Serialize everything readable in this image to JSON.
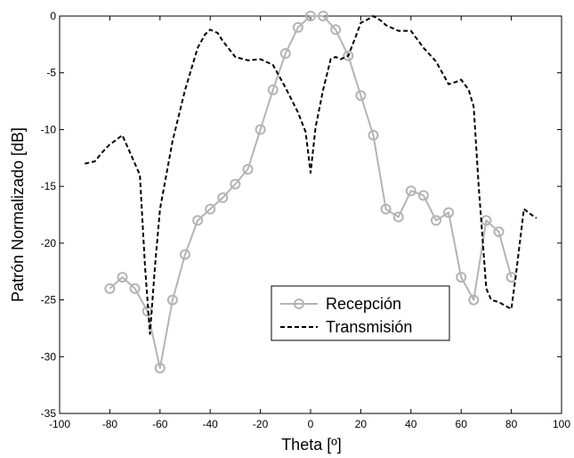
{
  "chart_data": {
    "type": "line",
    "title": "",
    "xlabel": "Theta [º]",
    "ylabel": "Patrón Normalizado [dB]",
    "xlim": [
      -100,
      100
    ],
    "ylim": [
      -35,
      0
    ],
    "xticks": [
      -100,
      -80,
      -60,
      -40,
      -20,
      0,
      20,
      40,
      60,
      80,
      100
    ],
    "yticks": [
      0,
      -5,
      -10,
      -15,
      -20,
      -25,
      -30,
      -35
    ],
    "grid": false,
    "legend_position": "lower-right inside plot",
    "series": [
      {
        "name": "Recepción",
        "color": "#b4b4b4",
        "line_style": "solid",
        "marker": "circle",
        "x": [
          -80,
          -75,
          -70,
          -65,
          -60,
          -55,
          -50,
          -45,
          -40,
          -35,
          -30,
          -25,
          -20,
          -15,
          -10,
          -5,
          0,
          5,
          10,
          15,
          20,
          25,
          30,
          35,
          40,
          45,
          50,
          55,
          60,
          65,
          70,
          75,
          80
        ],
        "y": [
          -24,
          -23,
          -24,
          -26,
          -31,
          -25,
          -21,
          -18,
          -17,
          -16,
          -14.8,
          -13.5,
          -10,
          -6.5,
          -3.3,
          -1,
          0,
          0,
          -1.2,
          -3.5,
          -7,
          -10.5,
          -17,
          -17.7,
          -15.4,
          -15.8,
          -18,
          -17.3,
          -23,
          -25,
          -18,
          -19,
          -23
        ]
      },
      {
        "name": "Transmisión",
        "color": "#000000",
        "line_style": "dashed",
        "marker": "none",
        "x": [
          -90,
          -86,
          -83,
          -80,
          -78,
          -75,
          -73,
          -71,
          -68,
          -66,
          -64,
          -62,
          -60,
          -55,
          -50,
          -45,
          -42,
          -40,
          -37,
          -35,
          -30,
          -25,
          -20,
          -15,
          -10,
          -5,
          -2,
          0,
          2,
          5,
          8,
          10,
          12,
          15,
          18,
          20,
          22,
          25,
          28,
          30,
          35,
          40,
          45,
          50,
          55,
          58,
          60,
          63,
          65,
          67,
          70,
          72,
          75,
          80,
          82,
          85,
          88,
          90
        ],
        "y": [
          -13,
          -12.8,
          -12,
          -11.3,
          -11,
          -10.5,
          -11.5,
          -12.5,
          -14,
          -22,
          -28,
          -22,
          -17,
          -11,
          -6.5,
          -2.8,
          -1.6,
          -1.2,
          -1.5,
          -2.2,
          -3.6,
          -3.9,
          -3.8,
          -4.3,
          -6.3,
          -8.5,
          -10.2,
          -13.8,
          -9.8,
          -6.5,
          -3.8,
          -3.6,
          -3.8,
          -3.5,
          -1.8,
          -0.6,
          -0.4,
          0,
          -0.4,
          -0.8,
          -1.3,
          -1.3,
          -2.8,
          -4,
          -6,
          -5.8,
          -5.6,
          -6.5,
          -8,
          -15,
          -24,
          -25,
          -25.2,
          -25.8,
          -22.5,
          -17,
          -17.5,
          -17.8
        ]
      }
    ]
  }
}
